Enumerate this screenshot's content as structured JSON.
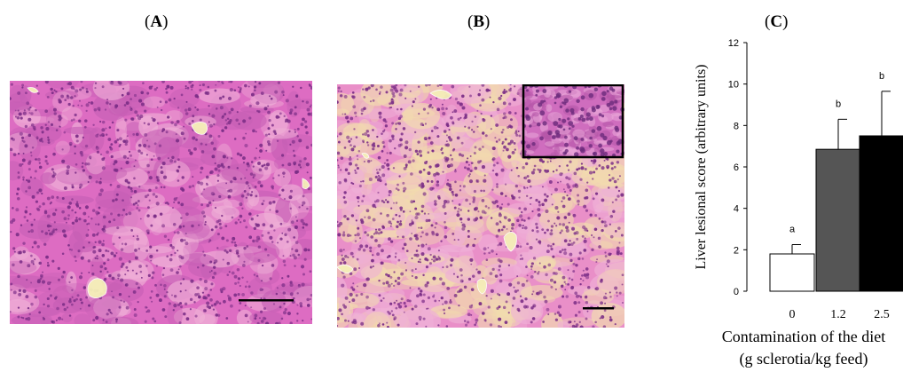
{
  "panels": {
    "a_label": "A",
    "b_label": "B",
    "c_label": "C"
  },
  "colors": {
    "tissue_base": "#e06fc4",
    "tissue_light": "#efb0d7",
    "tissue_yellow": "#f3e6b0",
    "nuclei": "#7a2d86",
    "vessel": "#f5f0b8"
  },
  "chart_data": {
    "type": "bar",
    "categories": [
      "0",
      "1.2",
      "2.5"
    ],
    "values": [
      1.8,
      6.85,
      7.5
    ],
    "errors": [
      0.45,
      1.45,
      2.15
    ],
    "letters": [
      "a",
      "b",
      "b"
    ],
    "bar_colors": [
      "#ffffff",
      "#555555",
      "#000000"
    ],
    "ylabel": "Liver lesional score (arbitrary units)",
    "xlabel": "Contamination of the diet",
    "xlabel2": "(g sclerotia/kg feed)",
    "ylim": [
      0,
      12
    ],
    "yticks": [
      0,
      2,
      4,
      6,
      8,
      10,
      12
    ],
    "grid": false
  }
}
